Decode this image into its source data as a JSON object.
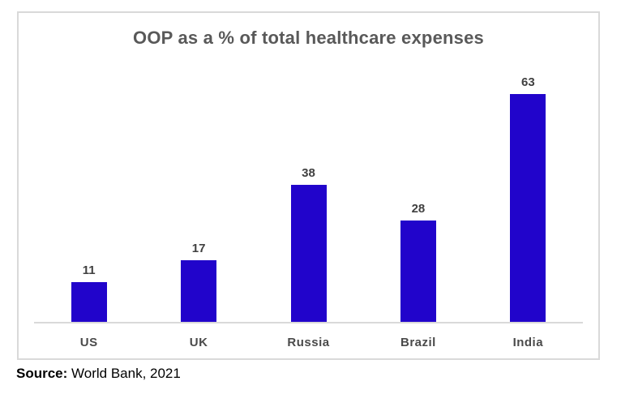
{
  "chart": {
    "title": "OOP as a % of total healthcare expenses",
    "colors": {
      "bar": "#2104CB",
      "title_text": "#595959",
      "label_text": "#404040",
      "axis_line": "#D9D9D9",
      "frame_border": "#D9D9D9",
      "background": "#ffffff"
    }
  },
  "chart_data": {
    "type": "bar",
    "title": "OOP as a % of total healthcare expenses",
    "categories": [
      "US",
      "UK",
      "Russia",
      "Brazil",
      "India"
    ],
    "values": [
      11,
      17,
      38,
      28,
      63
    ],
    "xlabel": "",
    "ylabel": "",
    "ylim": [
      0,
      70
    ],
    "grid": false,
    "legend": false,
    "data_labels": true
  },
  "source": {
    "label": "Source:",
    "text": " World Bank, 2021"
  }
}
